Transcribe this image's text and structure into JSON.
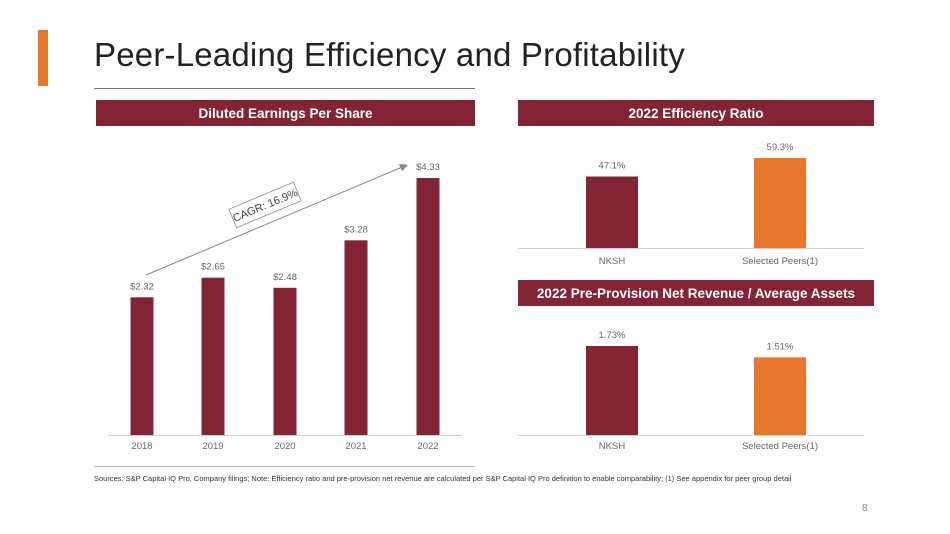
{
  "title": "Peer-Leading Efficiency and Profitability",
  "banners": {
    "eps": "Diluted Earnings Per Share",
    "efficiency": "2022 Efficiency Ratio",
    "ppnr": "2022 Pre-Provision Net Revenue / Average Assets"
  },
  "cagr_label": "CAGR: 16.9%",
  "footer": "Sources: S&P Capital IQ Pro, Company filings; Note: Efficiency ratio and pre-provision net revenue are calculated per S&P Capital IQ Pro definition to enable comparability; (1) See appendix for peer group detail",
  "page_number": "8",
  "colors": {
    "primary": "#822433",
    "accent": "#e8772e",
    "axis": "#d0d0d0",
    "label": "#666666"
  },
  "chart_data": [
    {
      "id": "eps",
      "type": "bar",
      "title": "Diluted Earnings Per Share",
      "categories": [
        "2018",
        "2019",
        "2020",
        "2021",
        "2022"
      ],
      "values": [
        2.32,
        2.65,
        2.48,
        3.28,
        4.33
      ],
      "data_labels": [
        "$2.32",
        "$2.65",
        "$2.48",
        "$3.28",
        "$4.33"
      ],
      "ylim": [
        0,
        4.33
      ],
      "annotation": "CAGR: 16.9%"
    },
    {
      "id": "efficiency",
      "type": "bar",
      "title": "2022 Efficiency Ratio",
      "categories": [
        "NKSH",
        "Selected Peers(1)"
      ],
      "values": [
        47.1,
        59.3
      ],
      "data_labels": [
        "47.1%",
        "59.3%"
      ],
      "ylim": [
        0,
        59.3
      ]
    },
    {
      "id": "ppnr",
      "type": "bar",
      "title": "2022 Pre-Provision Net Revenue / Average Assets",
      "categories": [
        "NKSH",
        "Selected Peers(1)"
      ],
      "values": [
        1.73,
        1.51
      ],
      "data_labels": [
        "1.73%",
        "1.51%"
      ],
      "ylim": [
        0,
        1.73
      ]
    }
  ]
}
